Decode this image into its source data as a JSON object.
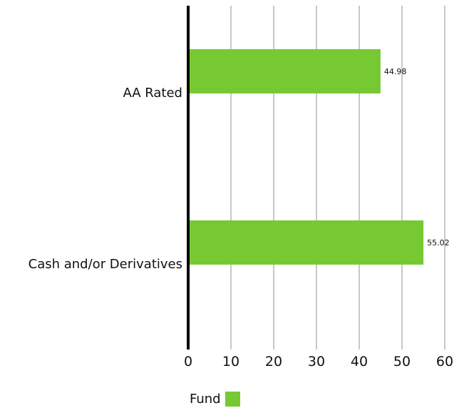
{
  "chart_data": {
    "type": "bar",
    "orientation": "horizontal",
    "categories": [
      "AA Rated",
      "Cash and/or Derivatives"
    ],
    "series": [
      {
        "name": "Fund",
        "values": [
          44.98,
          55.02
        ],
        "color": "#76c933"
      }
    ],
    "data_labels": [
      "44.98",
      "55.02"
    ],
    "xlim": [
      0,
      60
    ],
    "xticks": [
      0,
      10,
      20,
      30,
      40,
      50,
      60
    ],
    "grid": true,
    "grid_color": "#c8c8c8",
    "axis_color": "#000000",
    "legend": {
      "position": "bottom",
      "label": "Fund"
    }
  }
}
